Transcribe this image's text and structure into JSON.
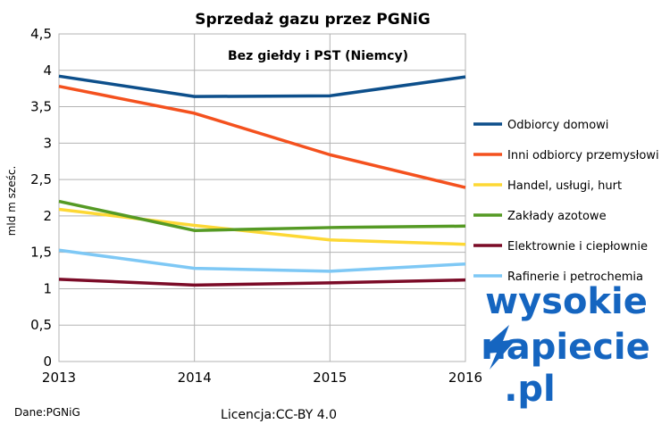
{
  "chart_data": {
    "type": "line",
    "title": "Sprzedaż gazu przez PGNiG",
    "subtitle": "Bez giełdy i PST (Niemcy)",
    "ylabel": "mld m sześc.",
    "xlabel": "",
    "x": [
      "2013",
      "2014",
      "2015",
      "2016"
    ],
    "ylim": [
      0,
      4.5
    ],
    "yticks": [
      "0",
      "0,5",
      "1",
      "1,5",
      "2",
      "2,5",
      "3",
      "3,5",
      "4",
      "4,5"
    ],
    "grid": true,
    "legend_position": "right",
    "series": [
      {
        "name": "Odbiorcy domowi",
        "color": "#0d4f8b",
        "values": [
          3.92,
          3.64,
          3.65,
          3.91
        ]
      },
      {
        "name": "Inni odbiorcy przemysłowi",
        "color": "#f4511e",
        "values": [
          3.78,
          3.41,
          2.84,
          2.39
        ]
      },
      {
        "name": "Handel, usługi, hurt",
        "color": "#fdd835",
        "values": [
          2.09,
          1.87,
          1.67,
          1.61
        ]
      },
      {
        "name": "Zakłady azotowe",
        "color": "#559a24",
        "values": [
          2.2,
          1.8,
          1.84,
          1.86
        ]
      },
      {
        "name": "Elektrownie i ciepłownie",
        "color": "#7b0b27",
        "values": [
          1.13,
          1.05,
          1.08,
          1.12
        ]
      },
      {
        "name": "Rafinerie i petrochemia",
        "color": "#7ec8f5",
        "values": [
          1.53,
          1.28,
          1.24,
          1.34
        ]
      }
    ]
  },
  "footer": {
    "source": "Dane:PGNiG",
    "license": "Licencja:CC-BY 4.0"
  },
  "brand": {
    "line1": "wysokie",
    "line2": "napiecie",
    "line3": ".pl",
    "color": "#1565c0"
  }
}
